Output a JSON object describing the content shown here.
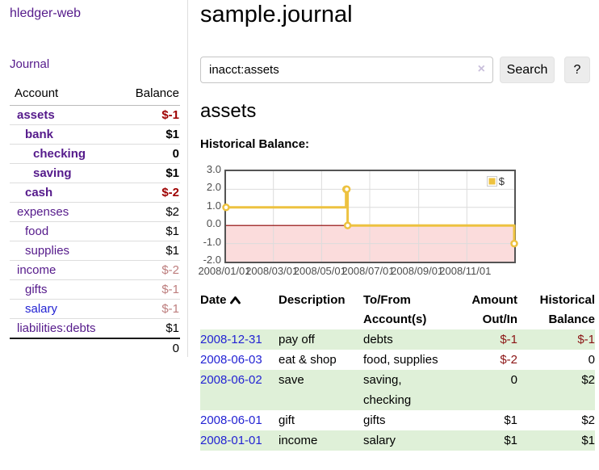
{
  "colors": {
    "link_purple": "#551a8b",
    "link_blue": "#2323d3",
    "neg_strong": "#9e0000",
    "neg_faded": "#bd7d7d",
    "neg": "#8b1414",
    "stripe_green": "#dff0d8",
    "chart_gold": "#edc240",
    "chart_pink": "#fbdcdc",
    "chart_zero_line": "#8b0000",
    "chart_grid": "#dcdcdc"
  },
  "sidebar": {
    "brand": "hledger-web",
    "nav_journal": "Journal",
    "accounts_table": {
      "header_account": "Account",
      "header_balance": "Balance",
      "rows": [
        {
          "name": "assets",
          "depth": 1,
          "bold": true,
          "balance": "$-1",
          "balance_style": "neg-strong"
        },
        {
          "name": "bank",
          "depth": 2,
          "bold": true,
          "balance": "$1",
          "balance_style": "pos-strong"
        },
        {
          "name": "checking",
          "depth": 3,
          "bold": true,
          "balance": "0",
          "balance_style": "pos-strong"
        },
        {
          "name": "saving",
          "depth": 3,
          "bold": true,
          "balance": "$1",
          "balance_style": "pos-strong"
        },
        {
          "name": "cash",
          "depth": 2,
          "bold": true,
          "balance": "$-2",
          "balance_style": "neg-strong"
        },
        {
          "name": "expenses",
          "depth": 1,
          "bold": false,
          "balance": "$2",
          "balance_style": "pos"
        },
        {
          "name": "food",
          "depth": 2,
          "bold": false,
          "balance": "$1",
          "balance_style": "pos"
        },
        {
          "name": "supplies",
          "depth": 2,
          "bold": false,
          "balance": "$1",
          "balance_style": "pos"
        },
        {
          "name": "income",
          "depth": 1,
          "bold": false,
          "balance": "$-2",
          "balance_style": "neg-faded"
        },
        {
          "name": "gifts",
          "depth": 2,
          "bold": false,
          "balance": "$-1",
          "balance_style": "neg-faded"
        },
        {
          "name": "salary",
          "depth": 2,
          "bold": false,
          "link_color": "blue",
          "balance": "$-1",
          "balance_style": "neg-faded"
        },
        {
          "name": "liabilities:debts",
          "depth": 1,
          "bold": false,
          "balance": "$1",
          "balance_style": "pos"
        }
      ],
      "total": "0"
    }
  },
  "header": {
    "title": "sample.journal"
  },
  "search": {
    "value": "inacct:assets",
    "clear_icon": "×",
    "button": "Search",
    "help_button": "?"
  },
  "account_page": {
    "heading": "assets",
    "chart_label": "Historical Balance:"
  },
  "chart_data": {
    "type": "line",
    "title": "Historical Balance:",
    "series": [
      {
        "name": "$",
        "color": "#edc240",
        "step": true,
        "points": [
          [
            "2008/01/01",
            1
          ],
          [
            "2008/06/01",
            2
          ],
          [
            "2008/06/02",
            2
          ],
          [
            "2008/06/03",
            0
          ],
          [
            "2008/12/31",
            -1
          ]
        ]
      }
    ],
    "x_range": [
      "2008/01/01",
      "2008/12/31"
    ],
    "ylim": [
      -2,
      3
    ],
    "yticks": [
      3.0,
      2.0,
      1.0,
      0.0,
      -1.0,
      -2.0
    ],
    "xticks": [
      "2008/01/01",
      "2008/03/01",
      "2008/05/01",
      "2008/07/01",
      "2008/09/01",
      "2008/11/01"
    ],
    "legend": {
      "position": "top-right",
      "entries": [
        "$"
      ]
    },
    "grid": true,
    "negative_region": true
  },
  "register_table": {
    "headers": {
      "date": "Date",
      "description": "Description",
      "tofrom": "To/From Account(s)",
      "amount": "Amount Out/In",
      "balance": "Historical Balance"
    },
    "rows": [
      {
        "date": "2008-12-31",
        "description": "pay off",
        "accounts": "debts",
        "amount": "$-1",
        "balance": "$-1",
        "shaded": true
      },
      {
        "date": "2008-06-03",
        "description": "eat & shop",
        "accounts": "food, supplies",
        "amount": "$-2",
        "balance": "0",
        "shaded": false
      },
      {
        "date": "2008-06-02",
        "description": "save",
        "accounts": "saving, checking",
        "amount": "0",
        "balance": "$2",
        "shaded": true
      },
      {
        "date": "2008-06-01",
        "description": "gift",
        "accounts": "gifts",
        "amount": "$1",
        "balance": "$2",
        "shaded": false
      },
      {
        "date": "2008-01-01",
        "description": "income",
        "accounts": "salary",
        "amount": "$1",
        "balance": "$1",
        "shaded": true
      }
    ]
  }
}
